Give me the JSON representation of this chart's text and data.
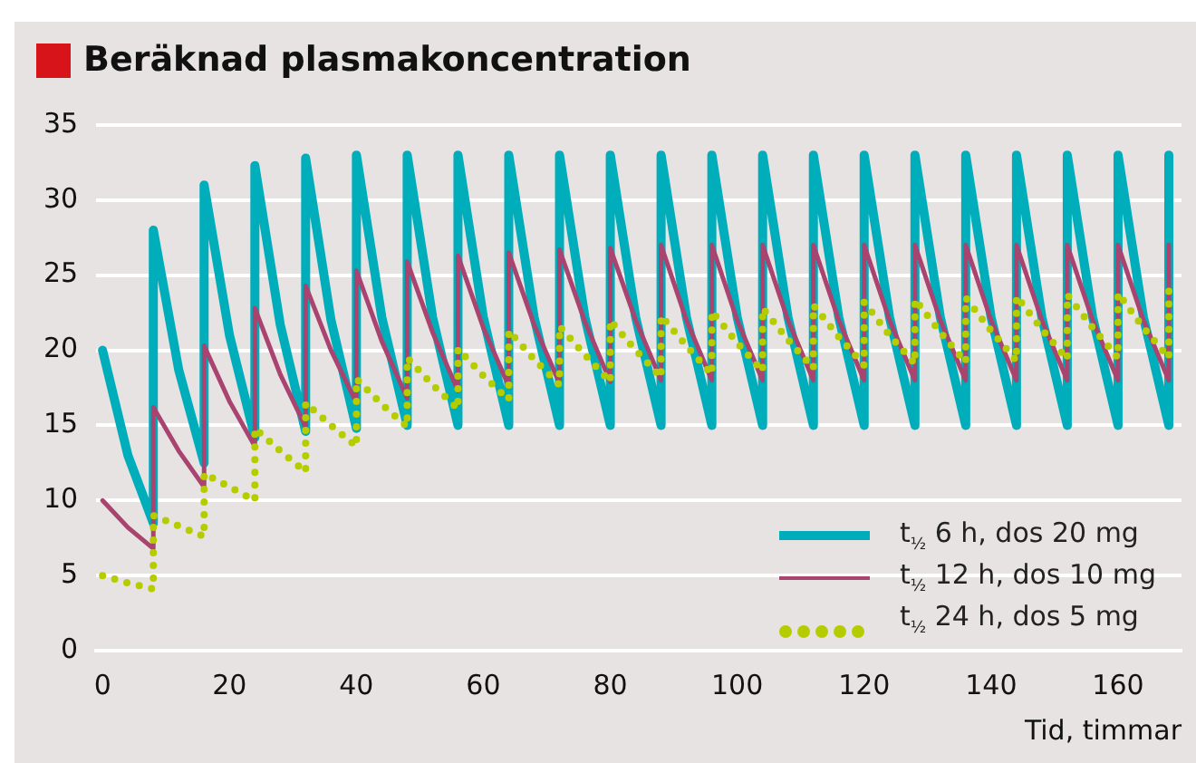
{
  "chart_data": {
    "type": "line",
    "title": "Beräknad plasmakoncentration",
    "xlabel": "Tid, timmar",
    "x": [
      0,
      4,
      8,
      8,
      12,
      16,
      16,
      20,
      24,
      24,
      28,
      32,
      32,
      36,
      40,
      40,
      44,
      48,
      48,
      52,
      56,
      56,
      60,
      64,
      64,
      68,
      72,
      72,
      76,
      80,
      80,
      84,
      88,
      88,
      92,
      96,
      96,
      100,
      104,
      104,
      108,
      112,
      112,
      116,
      120,
      120,
      124,
      128,
      128,
      132,
      136,
      136,
      140,
      144,
      144,
      148,
      152,
      152,
      156,
      160,
      160,
      164,
      168,
      168
    ],
    "series": [
      {
        "name": "t$_{½}$ 6 h, dos 20 mg",
        "color": "#00adbb",
        "line_style": "solid",
        "values": [
          20,
          13,
          8.5,
          28,
          18.7,
          12.5,
          31,
          21,
          14.2,
          32.3,
          21.7,
          14.6,
          32.8,
          22,
          14.8,
          33,
          22.2,
          15,
          33,
          22.2,
          15,
          33,
          22.2,
          15,
          33,
          22.2,
          15,
          33,
          22.2,
          15,
          33,
          22.2,
          15,
          33,
          22.2,
          15,
          33,
          22.2,
          15,
          33,
          22.2,
          15,
          33,
          22.2,
          15,
          33,
          22.2,
          15,
          33,
          22.2,
          15,
          33,
          22.2,
          15,
          33,
          22.2,
          15,
          33,
          22.2,
          15,
          33,
          22.2,
          15,
          33
        ]
      },
      {
        "name": "t$_{½}$ 12 h, dos 10 mg",
        "color": "#a8446f",
        "line_style": "solid",
        "values": [
          10,
          8.2,
          6.8,
          16.2,
          13.3,
          10.9,
          20.3,
          16.6,
          13.6,
          22.8,
          18.4,
          14.9,
          24.3,
          20,
          16.5,
          25.3,
          20.6,
          16.8,
          25.9,
          21.2,
          17.3,
          26.3,
          21.5,
          17.6,
          26.5,
          21.7,
          17.8,
          26.7,
          21.9,
          17.9,
          26.8,
          22,
          18,
          27,
          22,
          18,
          27,
          22,
          18,
          27,
          22,
          18,
          27,
          22,
          18,
          27,
          22,
          18,
          27,
          22,
          18,
          27,
          22,
          18,
          27,
          22,
          18,
          27,
          22,
          18,
          27,
          22,
          18,
          27
        ]
      },
      {
        "name": "t$_{½}$ 24 h, dos 5 mg",
        "color": "#b5cc00",
        "line_style": "dotted",
        "values": [
          5,
          4.5,
          4.1,
          9,
          8.3,
          7.6,
          11.8,
          10.9,
          10,
          14.8,
          13.3,
          11.9,
          16.5,
          15,
          13.6,
          18.1,
          16.4,
          14.9,
          19.5,
          17.7,
          16.1,
          20.1,
          18.3,
          16.7,
          21.3,
          19.4,
          17.7,
          21.6,
          19.7,
          17.9,
          22,
          20,
          18.2,
          22.3,
          20.3,
          18.4,
          22.6,
          20.5,
          18.6,
          22.8,
          20.7,
          18.8,
          23,
          20.9,
          19,
          23.2,
          21,
          19.1,
          23.4,
          21.2,
          19.2,
          23.5,
          21.3,
          19.3,
          23.6,
          21.4,
          19.4,
          23.7,
          21.5,
          19.5,
          23.8,
          21.5,
          19.5,
          24
        ]
      }
    ],
    "xlim": [
      -1,
      170
    ],
    "xticks": [
      0,
      20,
      40,
      60,
      80,
      100,
      120,
      140,
      160
    ],
    "ylim": [
      0,
      35
    ],
    "yticks": [
      0,
      5,
      10,
      15,
      20,
      25,
      30,
      35
    ],
    "grid": "y",
    "legend": "bottom right",
    "marker": "none"
  }
}
